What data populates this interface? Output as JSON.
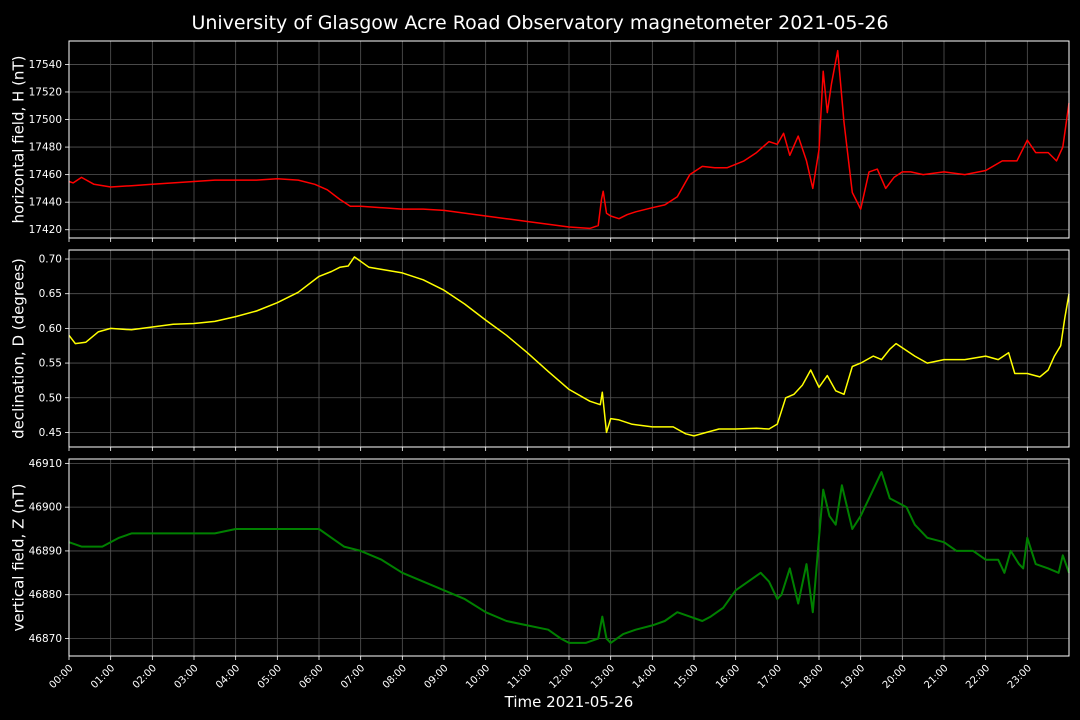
{
  "figure": {
    "title": "University of Glasgow Acre Road Observatory magnetometer 2021-05-26",
    "xlabel": "Time 2021-05-26",
    "background": "#000000",
    "grid_color": "#555555",
    "axes_color": "#ffffff"
  },
  "chart_data": [
    {
      "type": "line",
      "ylabel": "horizontal field, H (nT)",
      "color": "#ff0000",
      "ylim": [
        17414,
        17557
      ],
      "yticks": [
        17420,
        17440,
        17460,
        17480,
        17500,
        17520,
        17540
      ],
      "xlim": [
        0,
        24
      ],
      "grid": true,
      "x": [
        0,
        0.1,
        0.3,
        0.6,
        1.0,
        1.5,
        2.0,
        2.5,
        3.0,
        3.5,
        4.0,
        4.5,
        5.0,
        5.5,
        5.9,
        6.2,
        6.5,
        6.75,
        7.0,
        8.0,
        8.5,
        9.0,
        10.0,
        10.5,
        11.0,
        11.5,
        12.0,
        12.5,
        12.7,
        12.78,
        12.82,
        12.9,
        13.0,
        13.2,
        13.4,
        13.6,
        14.0,
        14.3,
        14.6,
        14.9,
        15.2,
        15.5,
        15.8,
        16.2,
        16.5,
        16.8,
        17.0,
        17.15,
        17.3,
        17.5,
        17.7,
        17.85,
        18.0,
        18.1,
        18.2,
        18.3,
        18.45,
        18.6,
        18.8,
        19.0,
        19.2,
        19.4,
        19.6,
        19.8,
        20.0,
        20.2,
        20.5,
        21.0,
        21.5,
        22.0,
        22.4,
        22.75,
        23.0,
        23.2,
        23.5,
        23.7,
        23.85,
        24.0
      ],
      "y": [
        17455,
        17454,
        17458,
        17453,
        17451,
        17452,
        17453,
        17454,
        17455,
        17456,
        17456,
        17456,
        17457,
        17456,
        17453,
        17449,
        17442,
        17437,
        17437,
        17435,
        17435,
        17434,
        17430,
        17428,
        17426,
        17424,
        17422,
        17421,
        17423,
        17442,
        17448,
        17432,
        17430,
        17428,
        17431,
        17433,
        17436,
        17438,
        17444,
        17460,
        17466,
        17465,
        17465,
        17470,
        17476,
        17484,
        17482,
        17490,
        17474,
        17488,
        17470,
        17450,
        17478,
        17535,
        17505,
        17526,
        17550,
        17498,
        17447,
        17435,
        17462,
        17464,
        17450,
        17458,
        17462,
        17462,
        17460,
        17462,
        17460,
        17463,
        17470,
        17470,
        17485,
        17476,
        17476,
        17470,
        17480,
        17512
      ]
    },
    {
      "type": "line",
      "ylabel": "declination, D (degrees)",
      "color": "#ffff00",
      "ylim": [
        0.429,
        0.713
      ],
      "yticks": [
        0.45,
        0.5,
        0.55,
        0.6,
        0.65,
        0.7
      ],
      "yticklabels": [
        "0.45",
        "0.50",
        "0.55",
        "0.60",
        "0.65",
        "0.70"
      ],
      "xlim": [
        0,
        24
      ],
      "grid": true,
      "x": [
        0,
        0.15,
        0.4,
        0.7,
        1.0,
        1.5,
        2.0,
        2.5,
        3.0,
        3.5,
        4.0,
        4.5,
        5.0,
        5.5,
        6.0,
        6.3,
        6.5,
        6.7,
        6.85,
        7.2,
        7.5,
        8.0,
        8.5,
        9.0,
        9.5,
        10.0,
        10.5,
        11.0,
        11.5,
        12.0,
        12.5,
        12.75,
        12.8,
        12.9,
        13.0,
        13.2,
        13.5,
        14.0,
        14.5,
        14.8,
        15.0,
        15.3,
        15.6,
        16.0,
        16.5,
        16.8,
        17.0,
        17.2,
        17.4,
        17.6,
        17.8,
        18.0,
        18.2,
        18.4,
        18.6,
        18.8,
        19.0,
        19.3,
        19.5,
        19.7,
        19.85,
        20.0,
        20.3,
        20.6,
        21.0,
        21.5,
        22.0,
        22.3,
        22.55,
        22.7,
        23.0,
        23.3,
        23.5,
        23.65,
        23.8,
        23.9,
        24.0
      ],
      "y": [
        0.59,
        0.578,
        0.58,
        0.595,
        0.6,
        0.598,
        0.602,
        0.606,
        0.607,
        0.61,
        0.617,
        0.625,
        0.637,
        0.652,
        0.675,
        0.682,
        0.688,
        0.69,
        0.703,
        0.688,
        0.685,
        0.68,
        0.67,
        0.655,
        0.635,
        0.612,
        0.59,
        0.565,
        0.538,
        0.512,
        0.495,
        0.49,
        0.508,
        0.45,
        0.47,
        0.468,
        0.462,
        0.458,
        0.458,
        0.448,
        0.445,
        0.45,
        0.455,
        0.455,
        0.456,
        0.455,
        0.462,
        0.5,
        0.505,
        0.518,
        0.54,
        0.515,
        0.532,
        0.51,
        0.505,
        0.545,
        0.55,
        0.56,
        0.555,
        0.57,
        0.578,
        0.572,
        0.56,
        0.55,
        0.555,
        0.555,
        0.56,
        0.555,
        0.565,
        0.535,
        0.535,
        0.53,
        0.54,
        0.56,
        0.575,
        0.615,
        0.65
      ]
    },
    {
      "type": "line",
      "ylabel": "vertical field, Z (nT)",
      "color": "#008000",
      "ylim": [
        46866,
        46911
      ],
      "yticks": [
        46870,
        46880,
        46890,
        46900,
        46910
      ],
      "xlim": [
        0,
        24
      ],
      "grid": true,
      "x": [
        0,
        0.3,
        0.5,
        0.8,
        1.2,
        1.5,
        2.0,
        2.5,
        3.0,
        3.5,
        4.0,
        4.5,
        5.0,
        5.5,
        6.0,
        6.3,
        6.6,
        7.0,
        7.5,
        8.0,
        8.5,
        9.0,
        9.5,
        10.0,
        10.5,
        11.0,
        11.5,
        11.8,
        12.0,
        12.4,
        12.7,
        12.8,
        12.9,
        13.0,
        13.3,
        13.6,
        14.0,
        14.3,
        14.6,
        14.9,
        15.2,
        15.4,
        15.7,
        16.0,
        16.3,
        16.6,
        16.8,
        17.0,
        17.1,
        17.3,
        17.5,
        17.7,
        17.85,
        18.0,
        18.1,
        18.25,
        18.4,
        18.55,
        18.8,
        19.0,
        19.2,
        19.3,
        19.5,
        19.7,
        19.9,
        20.1,
        20.3,
        20.6,
        21.0,
        21.3,
        21.7,
        22.0,
        22.3,
        22.45,
        22.6,
        22.8,
        22.9,
        23.0,
        23.2,
        23.5,
        23.75,
        23.85,
        24.0
      ],
      "y": [
        46892,
        46891,
        46891,
        46891,
        46893,
        46894,
        46894,
        46894,
        46894,
        46894,
        46895,
        46895,
        46895,
        46895,
        46895,
        46893,
        46891,
        46890,
        46888,
        46885,
        46883,
        46881,
        46879,
        46876,
        46874,
        46873,
        46872,
        46870,
        46869,
        46869,
        46870,
        46875,
        46870,
        46869,
        46871,
        46872,
        46873,
        46874,
        46876,
        46875,
        46874,
        46875,
        46877,
        46881,
        46883,
        46885,
        46883,
        46879,
        46880,
        46886,
        46878,
        46887,
        46876,
        46893,
        46904,
        46898,
        46896,
        46905,
        46895,
        46898,
        46902,
        46904,
        46908,
        46902,
        46901,
        46900,
        46896,
        46893,
        46892,
        46890,
        46890,
        46888,
        46888,
        46885,
        46890,
        46887,
        46886,
        46893,
        46887,
        46886,
        46885,
        46889,
        46885
      ]
    }
  ],
  "xaxis": {
    "ticks": [
      0,
      1,
      2,
      3,
      4,
      5,
      6,
      7,
      8,
      9,
      10,
      11,
      12,
      13,
      14,
      15,
      16,
      17,
      18,
      19,
      20,
      21,
      22,
      23
    ],
    "labels": [
      "00:00",
      "01:00",
      "02:00",
      "03:00",
      "04:00",
      "05:00",
      "06:00",
      "07:00",
      "08:00",
      "09:00",
      "10:00",
      "11:00",
      "12:00",
      "13:00",
      "14:00",
      "15:00",
      "16:00",
      "17:00",
      "18:00",
      "19:00",
      "20:00",
      "21:00",
      "22:00",
      "23:00"
    ]
  }
}
